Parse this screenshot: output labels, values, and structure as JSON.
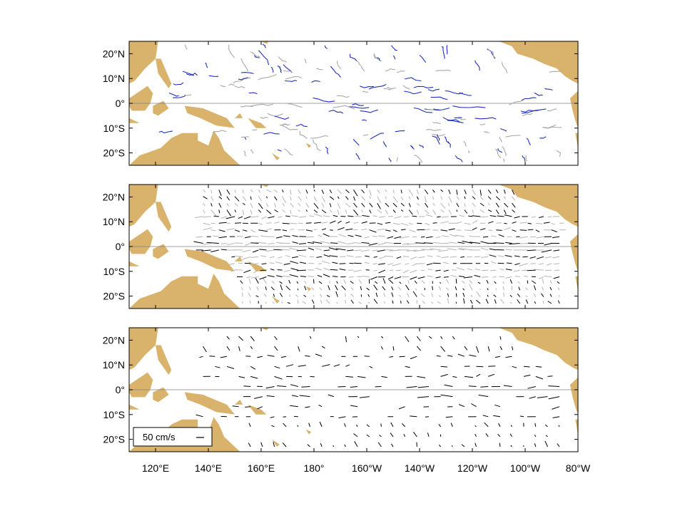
{
  "chart_data": {
    "type": "vector-map",
    "panel_count": 3,
    "lon_range": [
      110,
      280
    ],
    "lat_range": [
      -25,
      25
    ],
    "x_ticks": [
      {
        "lon": 120,
        "label": "120°E"
      },
      {
        "lon": 140,
        "label": "140°E"
      },
      {
        "lon": 160,
        "label": "160°E"
      },
      {
        "lon": 180,
        "label": "180°"
      },
      {
        "lon": 200,
        "label": "160°W"
      },
      {
        "lon": 220,
        "label": "140°W"
      },
      {
        "lon": 240,
        "label": "120°W"
      },
      {
        "lon": 260,
        "label": "100°W"
      },
      {
        "lon": 280,
        "label": "80°W"
      }
    ],
    "y_ticks": [
      {
        "lat": 20,
        "label": "20°N"
      },
      {
        "lat": 10,
        "label": "10°N"
      },
      {
        "lat": 0,
        "label": "0°"
      },
      {
        "lat": -10,
        "label": "10°S"
      },
      {
        "lat": -20,
        "label": "20°S"
      }
    ],
    "legend": {
      "label": "50 cm/s",
      "placement": "bottom-left",
      "panel": 3
    },
    "colors": {
      "land": "#d9b36b",
      "drifter_primary": "#1f2fbf",
      "drifter_secondary": "#a8a8a8",
      "vector_dark": "#000000",
      "vector_light": "#b4b4b4",
      "equator": "#808080"
    },
    "panels": [
      {
        "name": "drifter-tracks",
        "content": "drifter trajectories",
        "series_colors": [
          "drifter_primary",
          "drifter_secondary"
        ]
      },
      {
        "name": "gridded-velocity",
        "content": "dense gridded velocity vectors",
        "series_colors": [
          "vector_dark",
          "vector_light"
        ]
      },
      {
        "name": "sparse-velocity",
        "content": "sparse velocity vectors",
        "series_colors": [
          "vector_dark"
        ]
      }
    ]
  }
}
